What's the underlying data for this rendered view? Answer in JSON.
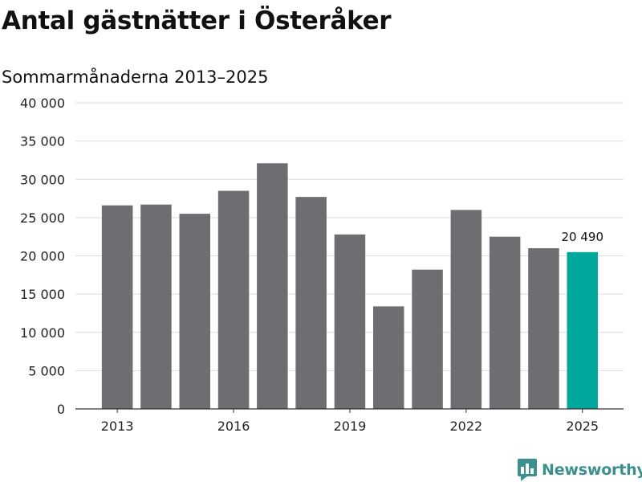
{
  "title": "Antal gästnätter i Österåker",
  "subtitle": "Sommarmånaderna 2013–2025",
  "brand": {
    "name": "Newsworthy",
    "icon": "bar-chart-logo-icon",
    "color": "#3b8f8c"
  },
  "chart_data": {
    "type": "bar",
    "title": "Antal gästnätter i Österåker",
    "subtitle": "Sommarmånaderna 2013–2025",
    "xlabel": "",
    "ylabel": "",
    "categories": [
      "2013",
      "2014",
      "2015",
      "2016",
      "2017",
      "2018",
      "2019",
      "2020",
      "2021",
      "2022",
      "2023",
      "2024",
      "2025"
    ],
    "values": [
      26600,
      26700,
      25500,
      28500,
      32100,
      27700,
      22800,
      13400,
      18200,
      26000,
      22500,
      21000,
      20490
    ],
    "x_tick_labels": [
      "2013",
      "2016",
      "2019",
      "2022",
      "2025"
    ],
    "y_ticks": [
      0,
      5000,
      10000,
      15000,
      20000,
      25000,
      30000,
      35000,
      40000
    ],
    "y_tick_labels": [
      "0",
      "5 000",
      "10 000",
      "15 000",
      "20 000",
      "25 000",
      "30 000",
      "35 000",
      "40 000"
    ],
    "ylim": [
      0,
      40000
    ],
    "grid": true,
    "legend": "none",
    "highlight_index": 12,
    "highlight_label": "20 490",
    "colors": {
      "bar": "#6e6d72",
      "highlight": "#00a79d",
      "grid": "#dddddd",
      "axis": "#333333"
    }
  }
}
